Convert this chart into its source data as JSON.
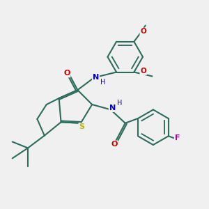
{
  "bg_color": "#f0f0f0",
  "bond_color": "#2d6b5a",
  "bond_width": 1.5,
  "S_color": "#b8b800",
  "N_color": "#0000cc",
  "O_color": "#cc0000",
  "F_color": "#aa00aa",
  "figsize": [
    3.0,
    3.0
  ],
  "dpi": 100,
  "xlim": [
    0,
    10
  ],
  "ylim": [
    0,
    10
  ]
}
